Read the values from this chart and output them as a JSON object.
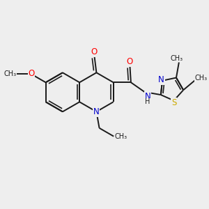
{
  "background_color": "#eeeeee",
  "bond_color": "#1a1a1a",
  "atom_colors": {
    "O": "#ff0000",
    "N": "#0000cc",
    "S": "#ccaa00",
    "C": "#1a1a1a",
    "H": "#1a1a1a"
  },
  "figsize": [
    3.0,
    3.0
  ],
  "dpi": 100,
  "xlim": [
    0,
    10
  ],
  "ylim": [
    0,
    10
  ]
}
